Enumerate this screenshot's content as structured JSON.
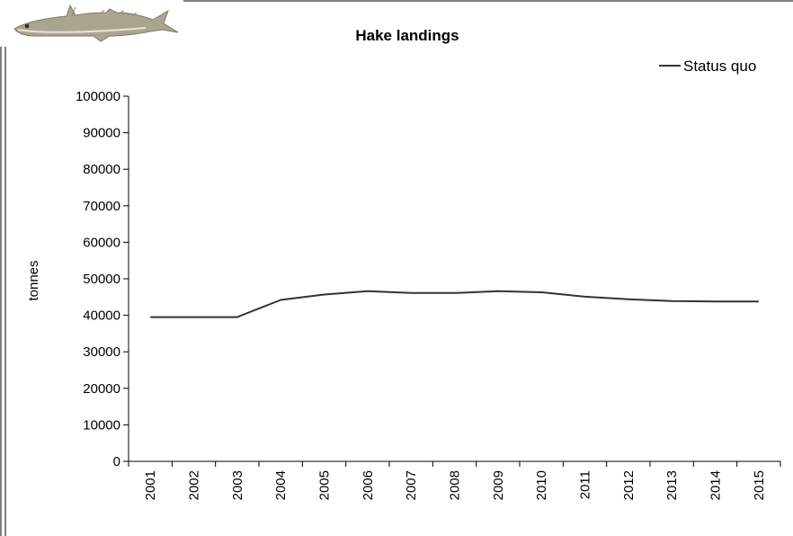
{
  "chart_data": {
    "type": "line",
    "title": "Hake landings",
    "xlabel": "",
    "ylabel": "tonnes",
    "categories": [
      "2001",
      "2002",
      "2003",
      "2004",
      "2005",
      "2006",
      "2007",
      "2008",
      "2009",
      "2010",
      "2011",
      "2012",
      "2013",
      "2014",
      "2015"
    ],
    "series": [
      {
        "name": "Status quo",
        "color": "#333333",
        "values": [
          39500,
          39500,
          39500,
          44200,
          45700,
          46600,
          46100,
          46100,
          46600,
          46300,
          45100,
          44400,
          43900,
          43800,
          43800
        ]
      }
    ],
    "ylim": [
      0,
      100000
    ],
    "yticks": [
      "0",
      "10000",
      "20000",
      "30000",
      "40000",
      "50000",
      "60000",
      "70000",
      "80000",
      "90000",
      "100000"
    ],
    "grid": false,
    "legend_position": "top-right",
    "decoration": "hake-fish-illustration"
  }
}
